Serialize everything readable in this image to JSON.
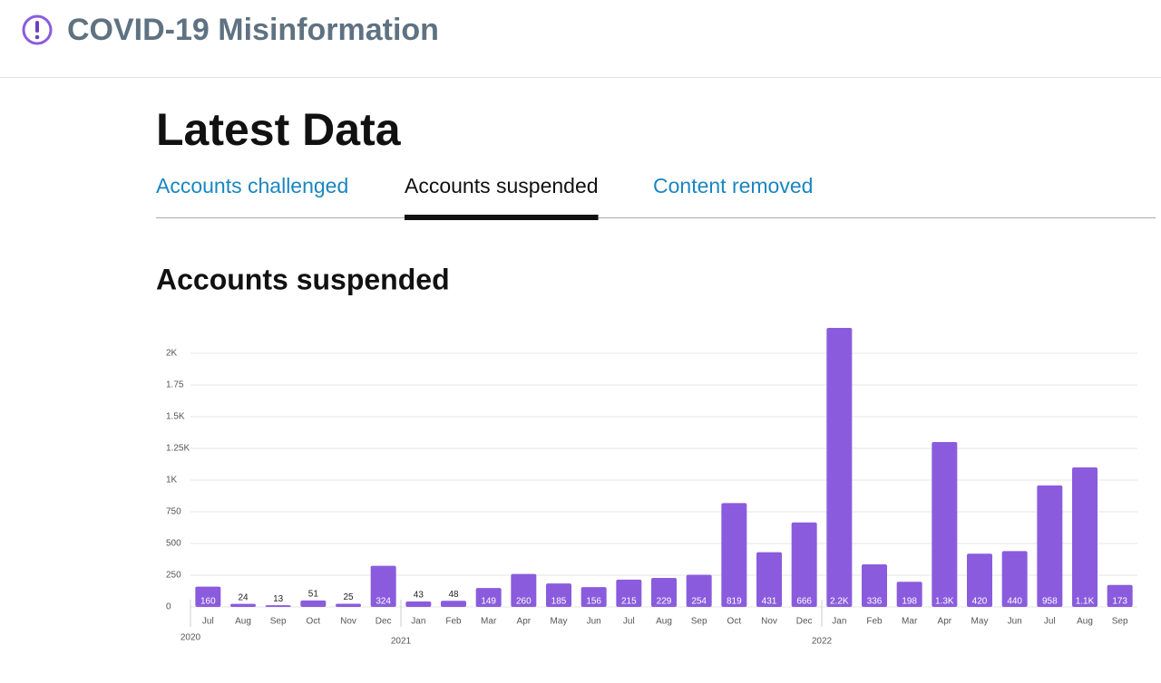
{
  "header": {
    "title": "COVID-19 Misinformation"
  },
  "page_title": "Latest Data",
  "tabs": [
    {
      "label": "Accounts challenged",
      "active": false
    },
    {
      "label": "Accounts suspended",
      "active": true
    },
    {
      "label": "Content removed",
      "active": false
    }
  ],
  "chart_data": {
    "type": "bar",
    "title": "Accounts suspended",
    "categories": [
      "Jul",
      "Aug",
      "Sep",
      "Oct",
      "Nov",
      "Dec",
      "Jan",
      "Feb",
      "Mar",
      "Apr",
      "May",
      "Jun",
      "Jul",
      "Aug",
      "Sep",
      "Oct",
      "Nov",
      "Dec",
      "Jan",
      "Feb",
      "Mar",
      "Apr",
      "May",
      "Jun",
      "Jul",
      "Aug",
      "Sep"
    ],
    "x_groups": [
      {
        "label": "2020",
        "start": 0
      },
      {
        "label": "2021",
        "start": 6
      },
      {
        "label": "2022",
        "start": 18
      }
    ],
    "values": [
      160,
      24,
      13,
      51,
      25,
      324,
      43,
      48,
      149,
      260,
      185,
      156,
      215,
      229,
      254,
      819,
      431,
      666,
      2200,
      336,
      198,
      1300,
      420,
      440,
      958,
      1100,
      173
    ],
    "value_labels": [
      null,
      null,
      null,
      null,
      null,
      null,
      null,
      null,
      null,
      null,
      null,
      null,
      null,
      null,
      null,
      null,
      null,
      null,
      "2.2K",
      null,
      null,
      "1.3K",
      null,
      null,
      null,
      "1.1K",
      null
    ],
    "color": "#8a5cdd",
    "ylim": [
      0,
      2050
    ],
    "yticks": [
      0,
      250,
      500,
      750,
      {
        "value": 1000,
        "label": "1K"
      },
      {
        "value": 1250,
        "label": "1.25K"
      },
      {
        "value": 1500,
        "label": "1.5K"
      },
      {
        "value": 1750,
        "label": "1.75"
      },
      {
        "value": 2000,
        "label": "2K"
      }
    ],
    "grid": true
  }
}
